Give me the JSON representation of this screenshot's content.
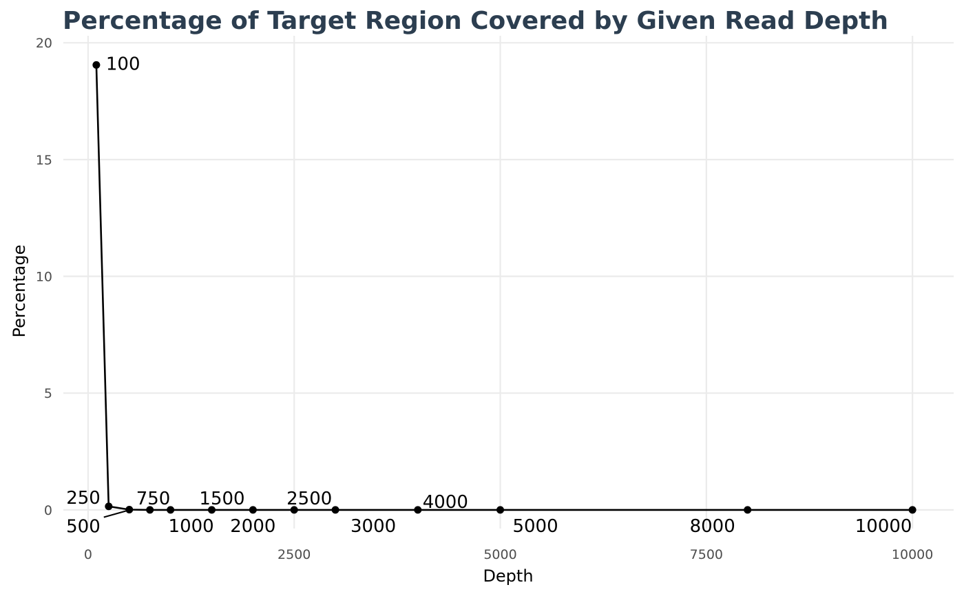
{
  "chart_data": {
    "type": "line",
    "title": "Percentage of Target Region Covered by Given Read Depth",
    "xlabel": "Depth",
    "ylabel": "Percentage",
    "xlim": [
      -300,
      10500
    ],
    "ylim": [
      -0.8,
      20.3
    ],
    "xticks": [
      0,
      2500,
      5000,
      7500,
      10000
    ],
    "xtick_labels": [
      "0",
      "2500",
      "5000",
      "7500",
      "10000"
    ],
    "yticks": [
      0,
      5,
      10,
      15,
      20
    ],
    "ytick_labels": [
      "0",
      "5",
      "10",
      "15",
      "20"
    ],
    "grid": true,
    "series": [
      {
        "x": [
          100,
          250,
          500,
          750,
          1000,
          1500,
          2000,
          2500,
          3000,
          4000,
          5000,
          8000,
          10000
        ],
        "y": [
          19.05,
          0.15,
          0.01,
          0.0,
          0.0,
          0.0,
          0.0,
          0.0,
          0.0,
          0.0,
          0.0,
          0.0,
          0.0
        ],
        "point_labels": [
          "100",
          "250",
          "500",
          "750",
          "1000",
          "1500",
          "2000",
          "2500",
          "3000",
          "4000",
          "5000",
          "8000",
          "10000"
        ]
      }
    ],
    "colors": {
      "series": "#000000",
      "title": "#2c3e50",
      "grid": "#ebebeb",
      "ticks": "#4d4d4d"
    }
  }
}
